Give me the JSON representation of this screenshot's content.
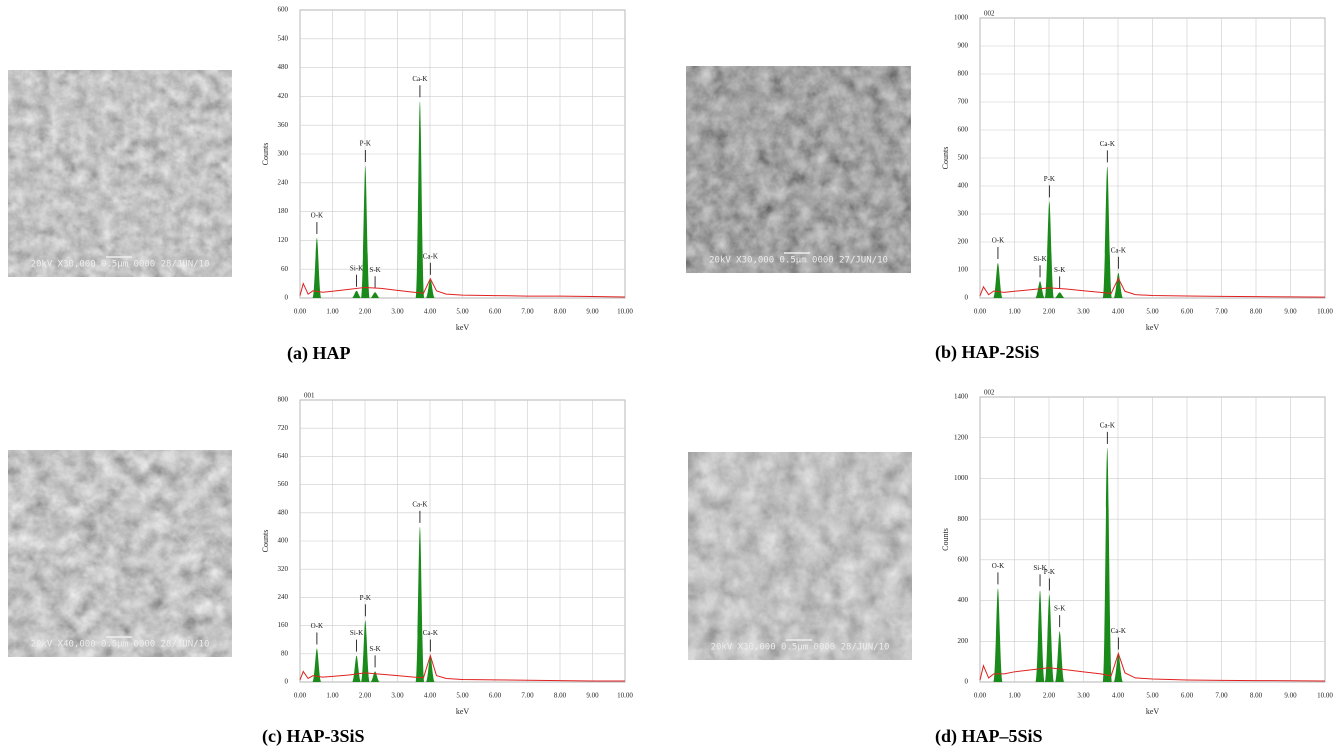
{
  "chart_data": [
    {
      "type": "line",
      "caption": "(a) HAP",
      "image_text": "20kV X30,000 0.5µm 0000 28/JUN/10",
      "ylabel": "Counts",
      "xlabel": "keV",
      "xlim": [
        0,
        10
      ],
      "ylim": [
        0,
        600
      ],
      "xticks": [
        {
          "value": 0,
          "label": "0.00"
        },
        {
          "value": 1,
          "label": "1.00"
        },
        {
          "value": 2,
          "label": "2.00"
        },
        {
          "value": 3,
          "label": "3.00"
        },
        {
          "value": 4,
          "label": "4.00"
        },
        {
          "value": 5,
          "label": "5.00"
        },
        {
          "value": 6,
          "label": "6.00"
        },
        {
          "value": 7,
          "label": "7.00"
        },
        {
          "value": 8,
          "label": "8.00"
        },
        {
          "value": 9,
          "label": "9.00"
        },
        {
          "value": 10,
          "label": "10.00"
        }
      ],
      "yticks": [
        0,
        60,
        120,
        180,
        240,
        300,
        360,
        420,
        480,
        540,
        600
      ],
      "grid": true,
      "series": [
        {
          "color": "#e02020",
          "x": [
            0,
            0.1,
            0.25,
            0.4,
            0.7,
            1,
            1.5,
            2,
            2.5,
            3,
            3.5,
            3.8,
            4.01,
            4.2,
            4.5,
            5,
            6,
            7,
            8,
            9,
            10
          ],
          "values": [
            5,
            30,
            8,
            15,
            12,
            14,
            18,
            22,
            20,
            16,
            12,
            10,
            40,
            15,
            8,
            6,
            5,
            4,
            4,
            3,
            2
          ]
        }
      ],
      "peaks": {
        "color": "#1a8a1a",
        "labels": [
          "O-K",
          "Si-K",
          "P-K",
          "S-K",
          "Ca-K",
          "Ca-K"
        ],
        "x": [
          0.52,
          1.74,
          2.01,
          2.31,
          3.69,
          4.01
        ],
        "values": [
          125,
          15,
          275,
          12,
          410,
          40
        ]
      }
    },
    {
      "type": "line",
      "caption": "(b) HAP-2SiS",
      "id": "002",
      "image_text": "20kV X30,000 0.5µm 0000 27/JUN/10",
      "ylabel": "Counts",
      "xlabel": "keV",
      "xlim": [
        0,
        10
      ],
      "ylim": [
        0,
        1000
      ],
      "xticks": [
        {
          "value": 0,
          "label": "0.00"
        },
        {
          "value": 1,
          "label": "1.00"
        },
        {
          "value": 2,
          "label": "2.00"
        },
        {
          "value": 3,
          "label": "3.00"
        },
        {
          "value": 4,
          "label": "4.00"
        },
        {
          "value": 5,
          "label": "5.00"
        },
        {
          "value": 6,
          "label": "6.00"
        },
        {
          "value": 7,
          "label": "7.00"
        },
        {
          "value": 8,
          "label": "8.00"
        },
        {
          "value": 9,
          "label": "9.00"
        },
        {
          "value": 10,
          "label": "10.00"
        }
      ],
      "yticks": [
        0,
        100,
        200,
        300,
        400,
        500,
        600,
        700,
        800,
        900,
        1000
      ],
      "grid": true,
      "series": [
        {
          "color": "#e02020",
          "x": [
            0,
            0.1,
            0.25,
            0.4,
            0.7,
            1,
            1.5,
            2,
            2.5,
            3,
            3.5,
            3.8,
            4.01,
            4.2,
            4.5,
            5,
            6,
            7,
            8,
            9,
            10
          ],
          "values": [
            8,
            40,
            12,
            25,
            20,
            24,
            30,
            36,
            32,
            26,
            20,
            16,
            70,
            24,
            12,
            9,
            7,
            6,
            5,
            4,
            3
          ]
        }
      ],
      "peaks": {
        "color": "#1a8a1a",
        "labels": [
          "O-K",
          "Si-K",
          "P-K",
          "S-K",
          "Ca-K",
          "Ca-K"
        ],
        "x": [
          0.52,
          1.74,
          2.01,
          2.31,
          3.69,
          4.01
        ],
        "values": [
          125,
          60,
          345,
          20,
          470,
          90
        ]
      }
    },
    {
      "type": "line",
      "caption": "(c) HAP-3SiS",
      "id": "001",
      "image_text": "20kV X40,000 0.5µm 0000 28/JUN/10",
      "ylabel": "Counts",
      "xlabel": "keV",
      "xlim": [
        0,
        10
      ],
      "ylim": [
        0,
        800
      ],
      "xticks": [
        {
          "value": 0,
          "label": "0.00"
        },
        {
          "value": 1,
          "label": "1.00"
        },
        {
          "value": 2,
          "label": "2.00"
        },
        {
          "value": 3,
          "label": "3.00"
        },
        {
          "value": 4,
          "label": "4.00"
        },
        {
          "value": 5,
          "label": "5.00"
        },
        {
          "value": 6,
          "label": "6.00"
        },
        {
          "value": 7,
          "label": "7.00"
        },
        {
          "value": 8,
          "label": "8.00"
        },
        {
          "value": 9,
          "label": "9.00"
        },
        {
          "value": 10,
          "label": "10.00"
        }
      ],
      "yticks": [
        0,
        80,
        160,
        240,
        320,
        400,
        480,
        560,
        640,
        720,
        800
      ],
      "grid": true,
      "series": [
        {
          "color": "#e02020",
          "x": [
            0,
            0.1,
            0.25,
            0.4,
            0.7,
            1,
            1.5,
            2,
            2.5,
            3,
            3.5,
            3.8,
            4.01,
            4.2,
            4.5,
            5,
            6,
            7,
            8,
            9,
            10
          ],
          "values": [
            6,
            30,
            10,
            18,
            14,
            16,
            20,
            26,
            22,
            18,
            14,
            12,
            75,
            18,
            10,
            7,
            6,
            5,
            4,
            3,
            3
          ]
        }
      ],
      "peaks": {
        "color": "#1a8a1a",
        "labels": [
          "O-K",
          "Si-K",
          "P-K",
          "S-K",
          "Ca-K",
          "Ca-K"
        ],
        "x": [
          0.52,
          1.74,
          2.01,
          2.31,
          3.69,
          4.01
        ],
        "values": [
          95,
          75,
          175,
          30,
          440,
          75
        ]
      }
    },
    {
      "type": "line",
      "caption": "(d) HAP–5SiS",
      "id": "002",
      "image_text": "20kV X30,000 0.5µm 0000 28/JUN/10",
      "ylabel": "Counts",
      "xlabel": "keV",
      "xlim": [
        0,
        10
      ],
      "ylim": [
        0,
        1400
      ],
      "xticks": [
        {
          "value": 0,
          "label": "0.00"
        },
        {
          "value": 1,
          "label": "1.00"
        },
        {
          "value": 2,
          "label": "2.00"
        },
        {
          "value": 3,
          "label": "3.00"
        },
        {
          "value": 4,
          "label": "4.00"
        },
        {
          "value": 5,
          "label": "5.00"
        },
        {
          "value": 6,
          "label": "6.00"
        },
        {
          "value": 7,
          "label": "7.00"
        },
        {
          "value": 8,
          "label": "8.00"
        },
        {
          "value": 9,
          "label": "9.00"
        },
        {
          "value": 10,
          "label": "10.00"
        }
      ],
      "yticks": [
        0,
        200,
        400,
        600,
        800,
        1000,
        1200,
        1400
      ],
      "grid": true,
      "series": [
        {
          "color": "#e02020",
          "x": [
            0,
            0.1,
            0.25,
            0.4,
            0.7,
            1,
            1.5,
            2,
            2.5,
            3,
            3.5,
            3.8,
            4.01,
            4.2,
            4.5,
            5,
            6,
            7,
            8,
            9,
            10
          ],
          "values": [
            10,
            80,
            20,
            40,
            40,
            50,
            60,
            70,
            60,
            50,
            40,
            30,
            140,
            45,
            20,
            15,
            10,
            8,
            7,
            6,
            5
          ]
        }
      ],
      "peaks": {
        "color": "#1a8a1a",
        "labels": [
          "O-K",
          "Si-K",
          "P-K",
          "S-K",
          "Ca-K",
          "Ca-K"
        ],
        "x": [
          0.52,
          1.74,
          2.01,
          2.31,
          3.69,
          4.01
        ],
        "values": [
          460,
          450,
          430,
          250,
          1150,
          140
        ]
      }
    }
  ]
}
